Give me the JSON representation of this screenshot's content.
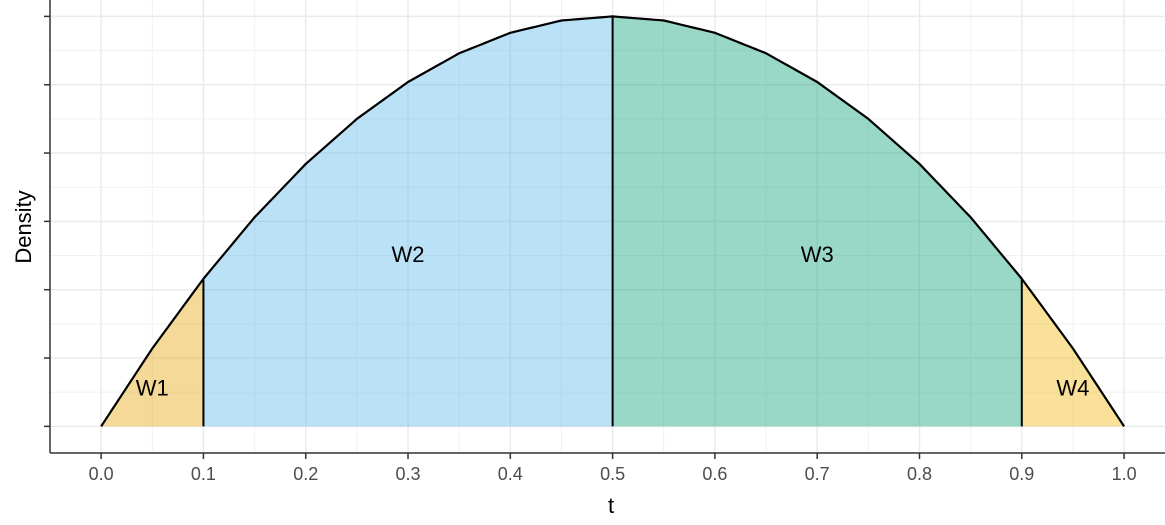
{
  "chart_data": {
    "type": "area",
    "title": "",
    "xlabel": "t",
    "ylabel": "Density",
    "xlim": [
      -0.05,
      1.04
    ],
    "ylim": [
      -0.065,
      1.04
    ],
    "x_ticks": [
      0.0,
      0.1,
      0.2,
      0.3,
      0.4,
      0.5,
      0.6,
      0.7,
      0.8,
      0.9,
      1.0
    ],
    "x_tick_labels": [
      "0.0",
      "0.1",
      "0.2",
      "0.3",
      "0.4",
      "0.5",
      "0.6",
      "0.7",
      "0.8",
      "0.9",
      "1.0"
    ],
    "y_ticks": [
      0.0,
      0.1667,
      0.3333,
      0.5,
      0.6667,
      0.8333,
      1.0
    ],
    "y_tick_labels": [
      "",
      "",
      "",
      "",
      "",
      "",
      ""
    ],
    "grid": true,
    "curve": {
      "name": "",
      "x": [
        0.0,
        0.05,
        0.1,
        0.15,
        0.2,
        0.25,
        0.3,
        0.35,
        0.4,
        0.45,
        0.5,
        0.55,
        0.6,
        0.65,
        0.7,
        0.75,
        0.8,
        0.85,
        0.9,
        0.95,
        1.0
      ],
      "y": [
        0.0,
        0.19,
        0.36,
        0.51,
        0.64,
        0.75,
        0.84,
        0.91,
        0.96,
        0.99,
        1.0,
        0.99,
        0.96,
        0.91,
        0.84,
        0.75,
        0.64,
        0.51,
        0.36,
        0.19,
        0.0
      ]
    },
    "regions": [
      {
        "name": "W1",
        "x_start": 0.0,
        "x_end": 0.1,
        "color": "#E69F00",
        "label_x": 0.05,
        "label_y": 0.095
      },
      {
        "name": "W2",
        "x_start": 0.1,
        "x_end": 0.5,
        "color": "#56B4E9",
        "label_x": 0.3,
        "label_y": 0.42
      },
      {
        "name": "W3",
        "x_start": 0.5,
        "x_end": 0.9,
        "color": "#009E73",
        "label_x": 0.7,
        "label_y": 0.42
      },
      {
        "name": "W4",
        "x_start": 0.9,
        "x_end": 1.0,
        "color": "#F0B400",
        "label_x": 0.95,
        "label_y": 0.095
      }
    ],
    "dividers": [
      0.1,
      0.5,
      0.9
    ]
  }
}
